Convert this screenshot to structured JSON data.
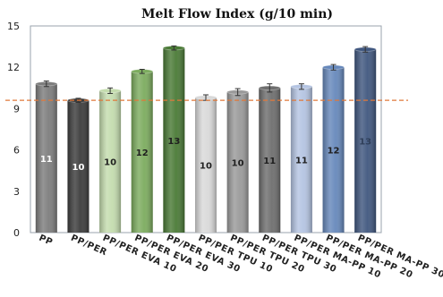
{
  "chart_data": {
    "type": "bar",
    "title": "Melt Flow Index (g/10 min)",
    "xlabel": "",
    "ylabel": "",
    "ylim": [
      0,
      15
    ],
    "yticks": [
      "0",
      "3",
      "6",
      "9",
      "12",
      "15"
    ],
    "categories": [
      "PP",
      "PP/PER",
      "PP/PER EVA 10",
      "PP/PER EVA 20",
      "PP/PER EVA 30",
      "PP/PER TPU 10",
      "PP/PER TPU 20",
      "PP/PER TPU 30",
      "PP/PER MA-PP 10",
      "PP/PER MA-PP 20",
      "PP/PER MA-PP 30"
    ],
    "values": [
      10.8,
      9.6,
      10.3,
      11.7,
      13.4,
      9.8,
      10.2,
      10.5,
      10.6,
      12.0,
      13.3
    ],
    "errors": [
      0.2,
      0.15,
      0.2,
      0.15,
      0.15,
      0.2,
      0.25,
      0.3,
      0.2,
      0.2,
      0.2
    ],
    "data_labels": [
      "11",
      "10",
      "10",
      "12",
      "13",
      "10",
      "10",
      "11",
      "11",
      "12",
      "13"
    ],
    "reference_line": 9.6,
    "grid": false,
    "colors": {
      "bars": [
        "#7d7d7d",
        "#3c3c3c",
        "#c4dcae",
        "#7cac5e",
        "#4a7a36",
        "#d9d9d9",
        "#9a9a9a",
        "#6e6e6e",
        "#b4c4e2",
        "#6688bb",
        "#40577f"
      ],
      "label_colors": [
        "#ffffff",
        "#ffffff",
        "#1f1f1f",
        "#1f1f1f",
        "#1f1f1f",
        "#1f1f1f",
        "#1f1f1f",
        "#1f1f1f",
        "#1f1f1f",
        "#1f1f1f",
        "#2f3f5a"
      ],
      "reference_line": "#e0783a",
      "plot_border": "#9aa3ad"
    }
  }
}
